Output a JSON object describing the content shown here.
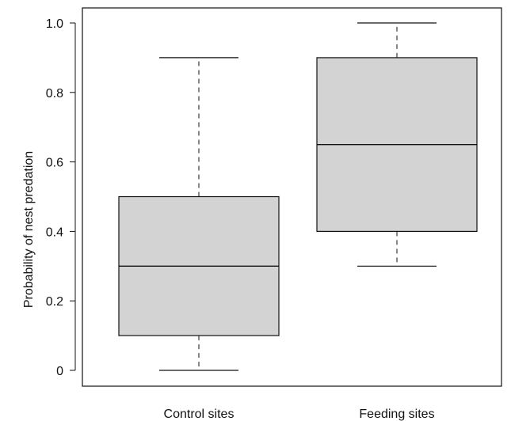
{
  "chart_data": {
    "type": "boxplot",
    "title": "",
    "xlabel": "",
    "ylabel": "Probability of nest predation",
    "ylim": [
      0,
      1.0
    ],
    "yticks": [
      {
        "value": 0,
        "label": "0"
      },
      {
        "value": 0.2,
        "label": "0.2"
      },
      {
        "value": 0.4,
        "label": "0.4"
      },
      {
        "value": 0.6,
        "label": "0.6"
      },
      {
        "value": 0.8,
        "label": "0.8"
      },
      {
        "value": 1.0,
        "label": "1.0"
      }
    ],
    "categories": [
      "Control sites",
      "Feeding sites"
    ],
    "boxes": [
      {
        "category": "Control sites",
        "min": 0.0,
        "q1": 0.1,
        "median": 0.3,
        "q3": 0.5,
        "max": 0.9
      },
      {
        "category": "Feeding sites",
        "min": 0.3,
        "q1": 0.4,
        "median": 0.65,
        "q3": 0.9,
        "max": 1.0
      }
    ],
    "grid": false,
    "box_fill": "#d3d3d3",
    "line_color": "#111111"
  }
}
